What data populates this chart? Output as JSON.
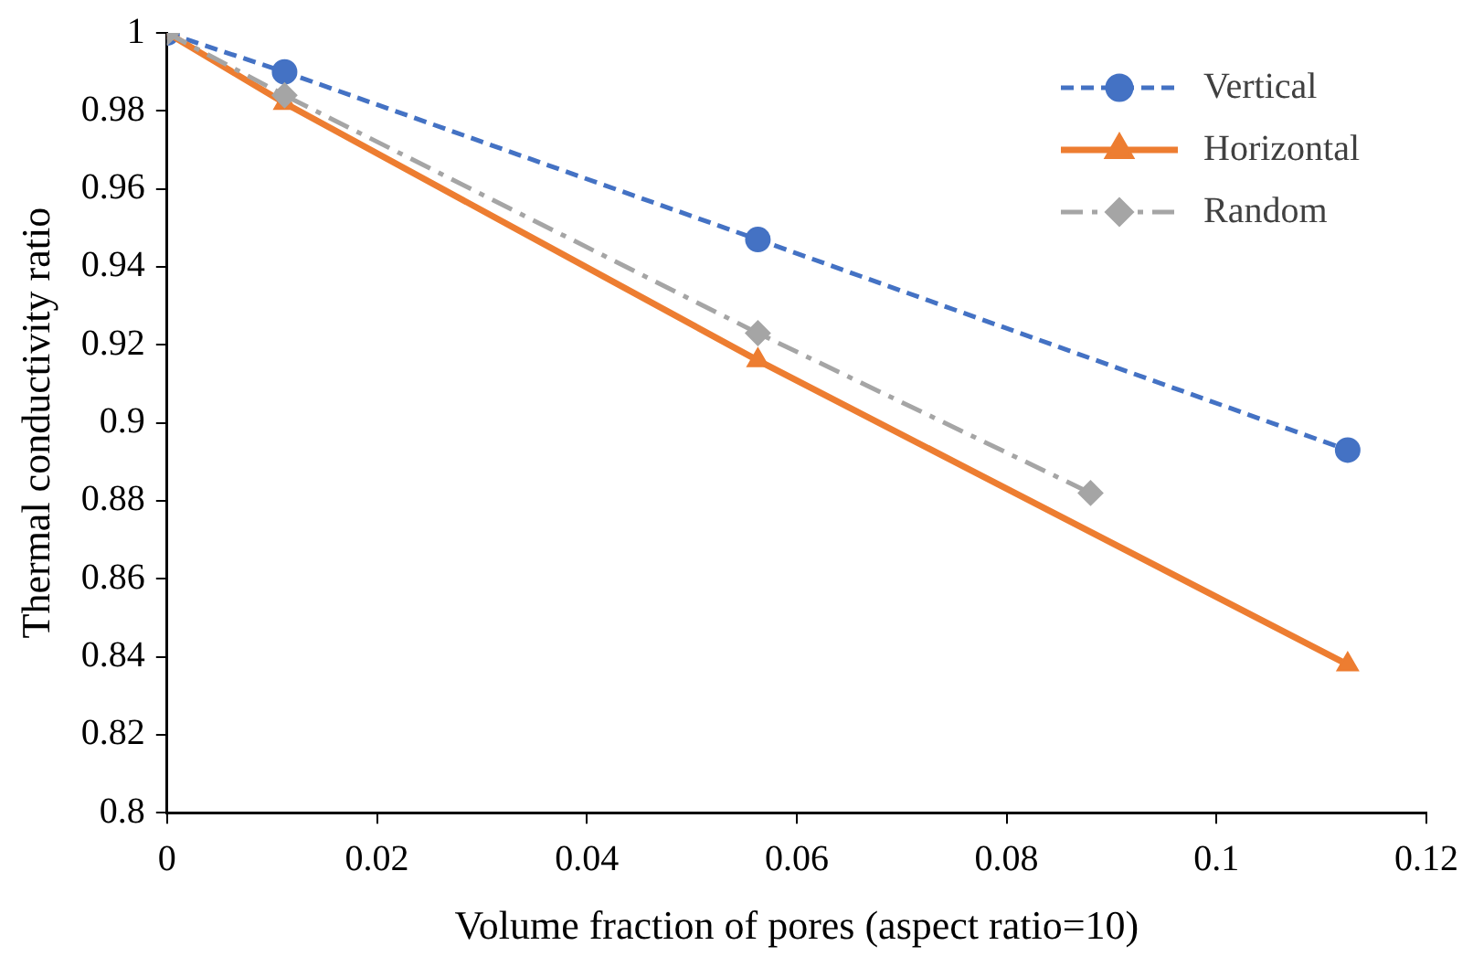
{
  "chart_data": {
    "type": "line",
    "xlabel": "Volume fraction of pores (aspect ratio=10)",
    "ylabel": "Thermal conductivity ratio",
    "xlim": [
      0,
      0.12
    ],
    "xticks": [
      0,
      0.02,
      0.04,
      0.06,
      0.08,
      0.1,
      0.12
    ],
    "ylim": [
      0.8,
      1
    ],
    "yticks": [
      0.8,
      0.82,
      0.84,
      0.86,
      0.88,
      0.9,
      0.92,
      0.94,
      0.96,
      0.98,
      1
    ],
    "grid": false,
    "legend": "top right",
    "series": [
      {
        "name": "Vertical",
        "color": "#4472c4",
        "marker": "circle",
        "line_style": "dashed",
        "x": [
          0,
          0.0112,
          0.0563,
          0.1125
        ],
        "values": [
          1,
          0.99,
          0.947,
          0.893
        ]
      },
      {
        "name": "Horizontal",
        "color": "#ed7d31",
        "marker": "triangle",
        "line_style": "solid",
        "x": [
          0,
          0.0112,
          0.0563,
          0.1125
        ],
        "values": [
          1,
          0.982,
          0.916,
          0.838
        ]
      },
      {
        "name": "Random",
        "color": "#a5a5a5",
        "marker": "diamond",
        "line_style": "dashdot",
        "x": [
          0,
          0.0112,
          0.0563,
          0.088
        ],
        "values": [
          1,
          0.984,
          0.923,
          0.882
        ]
      }
    ]
  }
}
